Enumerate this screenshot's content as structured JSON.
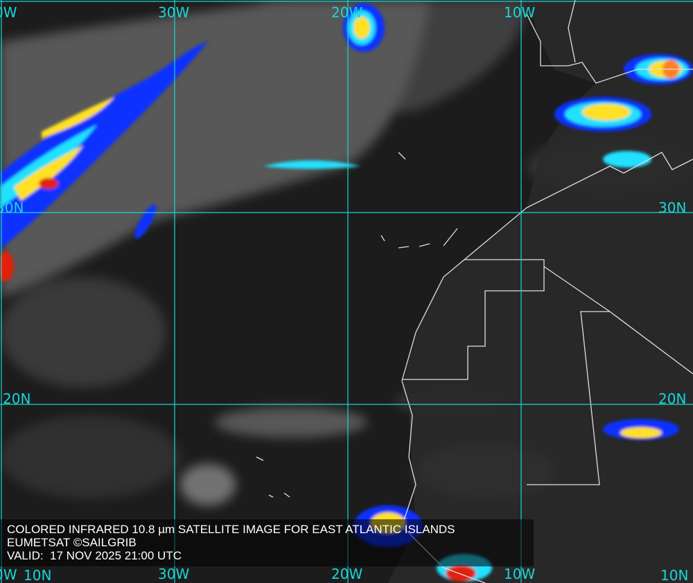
{
  "caption": {
    "title": "COLORED INFRARED 10.8 µm SATELLITE IMAGE FOR EAST ATLANTIC ISLANDS",
    "credit": "EUMETSAT ©SAILGRIB",
    "valid": "VALID:  17 NOV 2025 21:00 UTC"
  },
  "grid": {
    "longitude_labels_top": [
      "0W",
      "30W",
      "20W",
      "10W"
    ],
    "longitude_labels_bottom": [
      "0W",
      "30W",
      "20W",
      "10W"
    ],
    "latitude_labels_left": [
      "30N",
      "20N",
      "10N"
    ],
    "latitude_labels_right": [
      "30N",
      "20N",
      "10N"
    ],
    "line_color": "#19d6d6"
  },
  "colors": {
    "ocean": "#1c1c1c",
    "cloud_low": "#9a9a9a",
    "cold_blue": "#1030ff",
    "cyan": "#20e0ff",
    "yellow": "#ffe020",
    "red": "#e02010",
    "coastline": "#e0e0e0"
  }
}
